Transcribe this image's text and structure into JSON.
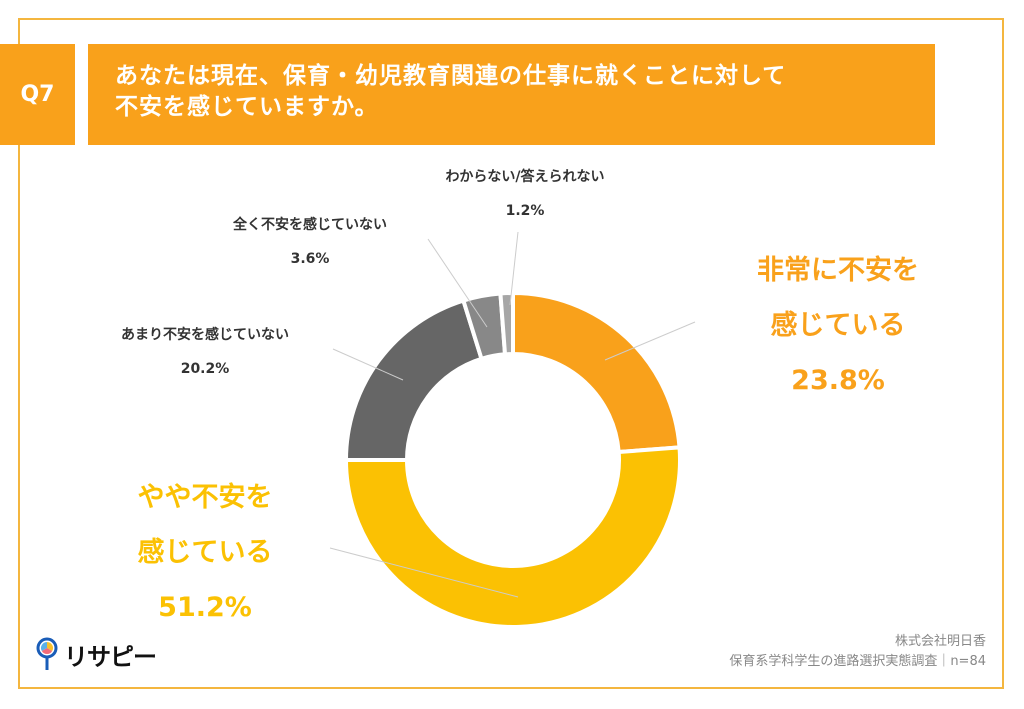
{
  "header": {
    "question_number": "Q7",
    "title_line1": "あなたは現在、保育・幼児教育関連の仕事に就くことに対して",
    "title_line2": "不安を感じていますか。"
  },
  "chart_data": {
    "type": "pie",
    "subtype": "donut",
    "start": "top, clockwise",
    "slices": [
      {
        "label_line1": "非常に不安を",
        "label_line2": "感じている",
        "label": "非常に不安を感じている",
        "value": 23.8,
        "display": "23.8%",
        "color": "#F9A11B"
      },
      {
        "label_line1": "やや不安を",
        "label_line2": "感じている",
        "label": "やや不安を感じている",
        "value": 51.2,
        "display": "51.2%",
        "color": "#FBC103"
      },
      {
        "label": "あまり不安を感じていない",
        "value": 20.2,
        "display": "20.2%",
        "color": "#666666"
      },
      {
        "label": "全く不安を感じていない",
        "value": 3.6,
        "display": "3.6%",
        "color": "#888888"
      },
      {
        "label": "わからない/答えられない",
        "value": 1.2,
        "display": "1.2%",
        "color": "#A6A6A6"
      }
    ]
  },
  "footer": {
    "company": "株式会社明日香",
    "survey": "保育系学科学生の進路選択実態調査｜n=84",
    "logo_text": "リサピー"
  },
  "colors": {
    "accent": "#F9A11B",
    "frame": "#F4B63F",
    "text_orange": "#F9A11B",
    "text_yellow": "#FBC103"
  }
}
